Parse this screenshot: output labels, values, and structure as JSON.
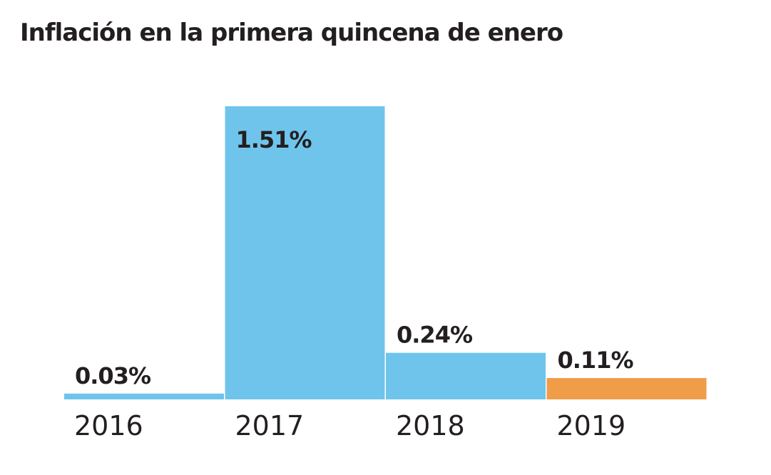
{
  "chart_data": {
    "type": "bar",
    "title": "Inflación en la primera quincena de enero",
    "categories": [
      "2016",
      "2017",
      "2018",
      "2019"
    ],
    "values": [
      0.03,
      1.51,
      0.24,
      0.11
    ],
    "data_labels": [
      "0.03%",
      "1.51%",
      "0.24%",
      "0.11%"
    ],
    "colors": [
      "#6fc4ec",
      "#6fc4ec",
      "#6fc4ec",
      "#f09d49"
    ],
    "xlabel": "",
    "ylabel": "",
    "ylim": [
      0,
      1.51
    ],
    "grid": false,
    "legend": "none"
  }
}
